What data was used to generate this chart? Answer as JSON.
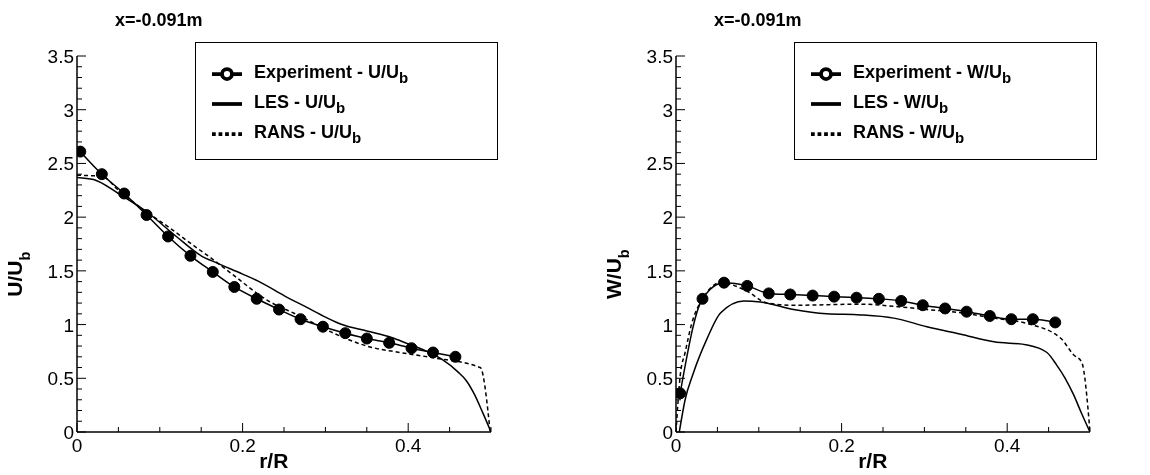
{
  "chart_data": [
    {
      "type": "line",
      "title": "x=-0.091m",
      "xlabel": "r/R",
      "ylabel": "U/U$_{b}$",
      "legend": "top right",
      "xlim": [
        0,
        0.5
      ],
      "ylim": [
        0,
        3.5
      ],
      "xticks": [
        0,
        {
          "value": 0.05,
          "label": null
        },
        {
          "value": 0.1,
          "label": null
        },
        {
          "value": 0.15,
          "label": null
        },
        0.2,
        {
          "value": 0.25,
          "label": null
        },
        {
          "value": 0.3,
          "label": null
        },
        {
          "value": 0.35,
          "label": null
        },
        0.4,
        {
          "value": 0.45,
          "label": null
        },
        {
          "value": 0.5,
          "label": null
        }
      ],
      "yticks": [
        0,
        {
          "value": 0.1,
          "label": null
        },
        {
          "value": 0.2,
          "label": null
        },
        {
          "value": 0.3,
          "label": null
        },
        {
          "value": 0.4,
          "label": null
        },
        0.5,
        {
          "value": 0.6,
          "label": null
        },
        {
          "value": 0.7,
          "label": null
        },
        {
          "value": 0.8,
          "label": null
        },
        {
          "value": 0.9,
          "label": null
        },
        1,
        {
          "value": 1.1,
          "label": null
        },
        {
          "value": 1.2,
          "label": null
        },
        {
          "value": 1.3,
          "label": null
        },
        {
          "value": 1.4,
          "label": null
        },
        1.5,
        {
          "value": 1.6,
          "label": null
        },
        {
          "value": 1.7,
          "label": null
        },
        {
          "value": 1.8,
          "label": null
        },
        {
          "value": 1.9,
          "label": null
        },
        2,
        {
          "value": 2.1,
          "label": null
        },
        {
          "value": 2.2,
          "label": null
        },
        {
          "value": 2.3,
          "label": null
        },
        {
          "value": 2.4,
          "label": null
        },
        2.5,
        {
          "value": 2.6,
          "label": null
        },
        {
          "value": 2.7,
          "label": null
        },
        {
          "value": 2.8,
          "label": null
        },
        {
          "value": 2.9,
          "label": null
        },
        3,
        {
          "value": 3.1,
          "label": null
        },
        {
          "value": 3.2,
          "label": null
        },
        {
          "value": 3.3,
          "label": null
        },
        {
          "value": 3.4,
          "label": null
        },
        3.5
      ],
      "series": [
        {
          "name": "LES - U/U$_{b}$",
          "color": "#000000",
          "marker": "none",
          "line_style": "solid",
          "x": [
            0,
            0.02,
            0.05,
            0.084,
            0.12,
            0.15,
            0.17,
            0.2,
            0.22,
            0.25,
            0.28,
            0.3,
            0.32,
            0.35,
            0.38,
            0.4,
            0.42,
            0.44,
            0.46,
            0.47,
            0.48,
            0.49,
            0.5
          ],
          "values": [
            2.37,
            2.35,
            2.22,
            2.05,
            1.82,
            1.64,
            1.57,
            1.47,
            1.4,
            1.27,
            1.15,
            1.07,
            1.0,
            0.94,
            0.88,
            0.82,
            0.76,
            0.68,
            0.56,
            0.48,
            0.35,
            0.18,
            0
          ]
        },
        {
          "name": "Experiment - U/U$_{b}$",
          "color": "#000000",
          "marker": "circle",
          "line_style": "solid",
          "x": [
            0.004,
            0.03,
            0.057,
            0.084,
            0.11,
            0.137,
            0.164,
            0.19,
            0.217,
            0.244,
            0.27,
            0.297,
            0.324,
            0.35,
            0.377,
            0.404,
            0.43,
            0.457
          ],
          "values": [
            2.61,
            2.4,
            2.22,
            2.02,
            1.82,
            1.64,
            1.49,
            1.35,
            1.24,
            1.14,
            1.05,
            0.98,
            0.92,
            0.87,
            0.83,
            0.78,
            0.74,
            0.7
          ]
        },
        {
          "name": "RANS - U/U$_{b}$",
          "color": "#000000",
          "marker": "none",
          "line_style": "dashed",
          "x": [
            0,
            0.03,
            0.05,
            0.08,
            0.112,
            0.14,
            0.16,
            0.189,
            0.229,
            0.269,
            0.31,
            0.35,
            0.39,
            0.431,
            0.487,
            0.499
          ],
          "values": [
            2.39,
            2.38,
            2.25,
            2.07,
            1.9,
            1.74,
            1.63,
            1.46,
            1.23,
            1.08,
            0.92,
            0.8,
            0.74,
            0.69,
            0.6,
            0
          ]
        }
      ]
    },
    {
      "type": "line",
      "title": "x=-0.091m",
      "xlabel": "r/R",
      "ylabel": "W/U$_{b}$",
      "legend": "top right",
      "xlim": [
        0,
        0.5
      ],
      "ylim": [
        0,
        3.5
      ],
      "xticks": [
        0,
        {
          "value": 0.05,
          "label": null
        },
        {
          "value": 0.1,
          "label": null
        },
        {
          "value": 0.15,
          "label": null
        },
        0.2,
        {
          "value": 0.25,
          "label": null
        },
        {
          "value": 0.3,
          "label": null
        },
        {
          "value": 0.35,
          "label": null
        },
        0.4,
        {
          "value": 0.45,
          "label": null
        },
        {
          "value": 0.5,
          "label": null
        }
      ],
      "yticks": [
        0,
        {
          "value": 0.1,
          "label": null
        },
        {
          "value": 0.2,
          "label": null
        },
        {
          "value": 0.3,
          "label": null
        },
        {
          "value": 0.4,
          "label": null
        },
        0.5,
        {
          "value": 0.6,
          "label": null
        },
        {
          "value": 0.7,
          "label": null
        },
        {
          "value": 0.8,
          "label": null
        },
        {
          "value": 0.9,
          "label": null
        },
        1,
        {
          "value": 1.1,
          "label": null
        },
        {
          "value": 1.2,
          "label": null
        },
        {
          "value": 1.3,
          "label": null
        },
        {
          "value": 1.4,
          "label": null
        },
        1.5,
        {
          "value": 1.6,
          "label": null
        },
        {
          "value": 1.7,
          "label": null
        },
        {
          "value": 1.8,
          "label": null
        },
        {
          "value": 1.9,
          "label": null
        },
        2,
        {
          "value": 2.1,
          "label": null
        },
        {
          "value": 2.2,
          "label": null
        },
        {
          "value": 2.3,
          "label": null
        },
        {
          "value": 2.4,
          "label": null
        },
        2.5,
        {
          "value": 2.6,
          "label": null
        },
        {
          "value": 2.7,
          "label": null
        },
        {
          "value": 2.8,
          "label": null
        },
        {
          "value": 2.9,
          "label": null
        },
        3,
        {
          "value": 3.1,
          "label": null
        },
        {
          "value": 3.2,
          "label": null
        },
        {
          "value": 3.3,
          "label": null
        },
        {
          "value": 3.4,
          "label": null
        },
        3.5
      ],
      "series": [
        {
          "name": "LES - W/U$_{b}$",
          "color": "#000000",
          "marker": "none",
          "line_style": "solid",
          "x": [
            0.004,
            0.011,
            0.021,
            0.037,
            0.054,
            0.082,
            0.102,
            0.142,
            0.182,
            0.223,
            0.263,
            0.303,
            0.344,
            0.384,
            0.424,
            0.448,
            0.46,
            0.47,
            0.48,
            0.49,
            0.5
          ],
          "values": [
            0,
            0.3,
            0.55,
            0.86,
            1.11,
            1.22,
            1.21,
            1.14,
            1.1,
            1.09,
            1.06,
            0.98,
            0.91,
            0.84,
            0.81,
            0.74,
            0.62,
            0.5,
            0.35,
            0.17,
            0
          ]
        },
        {
          "name": "Experiment - W/U$_{b}$",
          "color": "#000000",
          "marker": "circle",
          "line_style": "solid",
          "x": [
            0.005,
            0.032,
            0.058,
            0.086,
            0.112,
            0.138,
            0.165,
            0.191,
            0.218,
            0.245,
            0.272,
            0.298,
            0.325,
            0.351,
            0.379,
            0.405,
            0.431,
            0.458
          ],
          "values": [
            0.36,
            1.24,
            1.39,
            1.36,
            1.29,
            1.28,
            1.27,
            1.26,
            1.25,
            1.24,
            1.22,
            1.18,
            1.15,
            1.12,
            1.08,
            1.05,
            1.05,
            1.02
          ]
        },
        {
          "name": "RANS - W/U$_{b}$",
          "color": "#000000",
          "marker": "none",
          "line_style": "dashed",
          "x": [
            0,
            0.005,
            0.011,
            0.019,
            0.033,
            0.054,
            0.086,
            0.11,
            0.142,
            0.223,
            0.263,
            0.303,
            0.344,
            0.384,
            0.424,
            0.465,
            0.48,
            0.49,
            0.5
          ],
          "values": [
            0,
            0.52,
            0.74,
            1.01,
            1.25,
            1.39,
            1.31,
            1.2,
            1.18,
            1.19,
            1.17,
            1.14,
            1.11,
            1.06,
            1.01,
            0.87,
            0.72,
            0.65,
            0
          ]
        }
      ]
    }
  ]
}
